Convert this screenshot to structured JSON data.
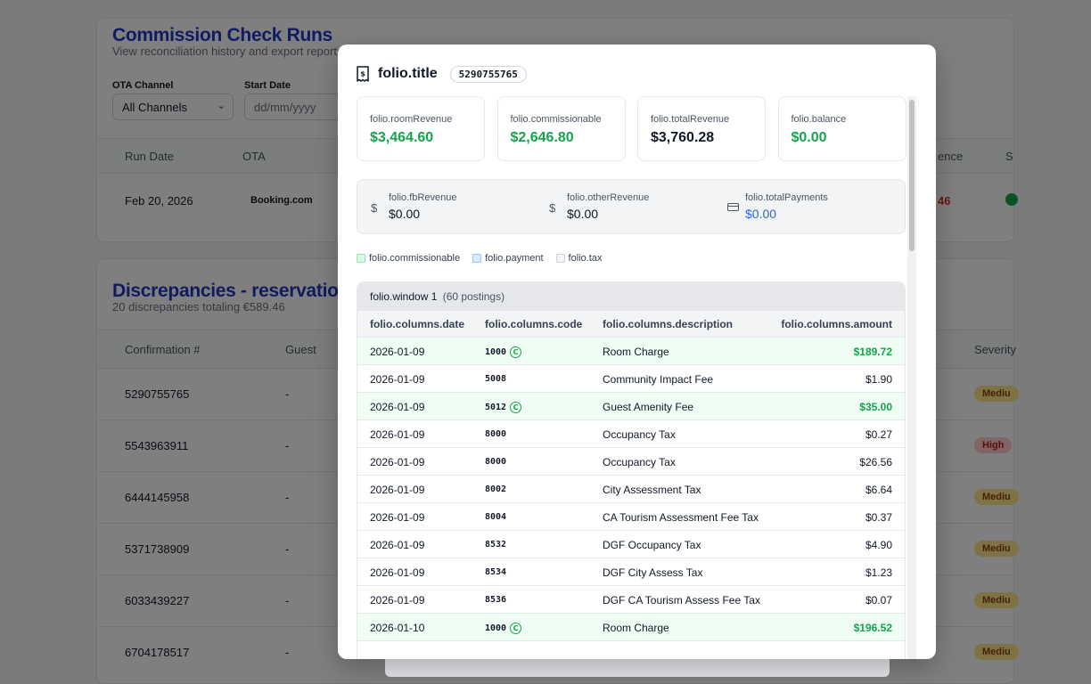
{
  "background": {
    "section1": {
      "title": "Commission Check Runs",
      "subtitle": "View reconciliation history and export reports",
      "filters": {
        "ota_label": "OTA Channel",
        "ota_value": "All Channels",
        "start_label": "Start Date",
        "start_placeholder": "dd/mm/yyyy"
      },
      "table_headers": [
        "Run Date",
        "OTA",
        "ence",
        "S"
      ],
      "row": {
        "date": "Feb 20, 2026",
        "ota": "Booking.com",
        "amount_fragment": "46"
      }
    },
    "section2": {
      "title": "Discrepancies - reservation_s",
      "subtitle": "20 discrepancies totaling €589.46",
      "headers": {
        "confirmation": "Confirmation #",
        "guest": "Guest",
        "severity": "Severity"
      },
      "rows": [
        {
          "confirmation": "5290755765",
          "guest": "-",
          "severity": "Mediu",
          "level": "medium"
        },
        {
          "confirmation": "5543963911",
          "guest": "-",
          "severity": "High",
          "level": "high"
        },
        {
          "confirmation": "6444145958",
          "guest": "-",
          "severity": "Mediu",
          "level": "medium"
        },
        {
          "confirmation": "5371738909",
          "guest": "-",
          "severity": "Mediu",
          "level": "medium"
        },
        {
          "confirmation": "6033439227",
          "guest": "-",
          "severity": "Mediu",
          "level": "medium"
        },
        {
          "confirmation": "6704178517",
          "guest": "-",
          "severity": "Mediu",
          "level": "medium"
        }
      ]
    }
  },
  "modal": {
    "title": "folio.title",
    "confirmation": "5290755765",
    "icon": "receipt-dollar-icon",
    "stats": [
      {
        "label": "folio.roomRevenue",
        "value": "$3,464.60",
        "tone": "green"
      },
      {
        "label": "folio.commissionable",
        "value": "$2,646.80",
        "tone": "green"
      },
      {
        "label": "folio.totalRevenue",
        "value": "$3,760.28",
        "tone": "dark"
      },
      {
        "label": "folio.balance",
        "value": "$0.00",
        "tone": "green"
      }
    ],
    "secondary": [
      {
        "label": "folio.fbRevenue",
        "value": "$0.00",
        "icon": "dollar-icon",
        "tone": "dark"
      },
      {
        "label": "folio.otherRevenue",
        "value": "$0.00",
        "icon": "dollar-icon",
        "tone": "dark"
      },
      {
        "label": "folio.totalPayments",
        "value": "$0.00",
        "icon": "credit-card-icon",
        "tone": "blue"
      }
    ],
    "legend": [
      {
        "label": "folio.commissionable",
        "swatch": "green"
      },
      {
        "label": "folio.payment",
        "swatch": "blue"
      },
      {
        "label": "folio.tax",
        "swatch": "gray"
      }
    ],
    "window": {
      "title": "folio.window 1",
      "count": "(60 postings)",
      "columns": {
        "date": "folio.columns.date",
        "code": "folio.columns.code",
        "description": "folio.columns.description",
        "amount": "folio.columns.amount"
      },
      "commission_marker": "C",
      "rows": [
        {
          "date": "2026-01-09",
          "code": "1000",
          "commissionable": true,
          "description": "Room Charge",
          "amount": "$189.72"
        },
        {
          "date": "2026-01-09",
          "code": "5008",
          "commissionable": false,
          "description": "Community Impact Fee",
          "amount": "$1.90"
        },
        {
          "date": "2026-01-09",
          "code": "5012",
          "commissionable": true,
          "description": "Guest Amenity Fee",
          "amount": "$35.00"
        },
        {
          "date": "2026-01-09",
          "code": "8000",
          "commissionable": false,
          "description": "Occupancy Tax",
          "amount": "$0.27"
        },
        {
          "date": "2026-01-09",
          "code": "8000",
          "commissionable": false,
          "description": "Occupancy Tax",
          "amount": "$26.56"
        },
        {
          "date": "2026-01-09",
          "code": "8002",
          "commissionable": false,
          "description": "City Assessment Tax",
          "amount": "$6.64"
        },
        {
          "date": "2026-01-09",
          "code": "8004",
          "commissionable": false,
          "description": "CA Tourism Assessment Fee Tax",
          "amount": "$0.37"
        },
        {
          "date": "2026-01-09",
          "code": "8532",
          "commissionable": false,
          "description": "DGF Occupancy Tax",
          "amount": "$4.90"
        },
        {
          "date": "2026-01-09",
          "code": "8534",
          "commissionable": false,
          "description": "DGF City Assess Tax",
          "amount": "$1.23"
        },
        {
          "date": "2026-01-09",
          "code": "8536",
          "commissionable": false,
          "description": "DGF CA Tourism Assess Fee Tax",
          "amount": "$0.07"
        },
        {
          "date": "2026-01-10",
          "code": "1000",
          "commissionable": true,
          "description": "Room Charge",
          "amount": "$196.52"
        }
      ]
    }
  }
}
